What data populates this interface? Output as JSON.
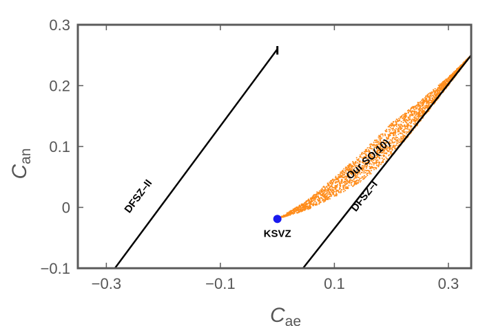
{
  "chart_data": {
    "type": "scatter",
    "xlabel": {
      "main": "C",
      "sub": "ae"
    },
    "ylabel": {
      "main": "C",
      "sub": "an"
    },
    "xlim": [
      -0.35,
      0.34
    ],
    "ylim": [
      -0.1,
      0.3
    ],
    "xticks": [
      -0.3,
      -0.1,
      0.1,
      0.3
    ],
    "xtick_labels": [
      "−0.3",
      "−0.1",
      "0.1",
      "0.3"
    ],
    "yticks": [
      -0.1,
      0,
      0.1,
      0.2,
      0.3
    ],
    "ytick_labels": [
      "−0.1",
      "0",
      "0.1",
      "0.2",
      "0.3"
    ],
    "grid": false,
    "colors": {
      "frame": "#5a5a5a",
      "lines": "#000000",
      "scatter": "#ff8c1a",
      "point": "#1a1aee"
    },
    "lines": [
      {
        "label": "DFSZ–II",
        "x": [
          -0.285,
          0.0
        ],
        "y": [
          -0.1,
          0.26
        ]
      },
      {
        "label": "DFSZ–I",
        "x": [
          0.045,
          0.34
        ],
        "y": [
          -0.1,
          0.25
        ]
      }
    ],
    "line_end_tick": {
      "x": 0.0,
      "y": [
        0.251,
        0.265
      ]
    },
    "point": {
      "label": "KSVZ",
      "x": 0.0,
      "y": -0.019
    },
    "region": {
      "label": "Our SO(10)",
      "start": [
        0.0,
        -0.019
      ],
      "end": [
        0.34,
        0.25
      ],
      "upper_edge": [
        [
          0.0,
          -0.019
        ],
        [
          0.05,
          0.01
        ],
        [
          0.1,
          0.049
        ],
        [
          0.15,
          0.092
        ],
        [
          0.2,
          0.138
        ],
        [
          0.25,
          0.175
        ],
        [
          0.3,
          0.214
        ],
        [
          0.34,
          0.25
        ]
      ],
      "lower_edge": [
        [
          0.0,
          -0.019
        ],
        [
          0.05,
          -0.005
        ],
        [
          0.1,
          0.017
        ],
        [
          0.15,
          0.044
        ],
        [
          0.2,
          0.083
        ],
        [
          0.25,
          0.14
        ],
        [
          0.3,
          0.2
        ],
        [
          0.34,
          0.25
        ]
      ]
    }
  }
}
